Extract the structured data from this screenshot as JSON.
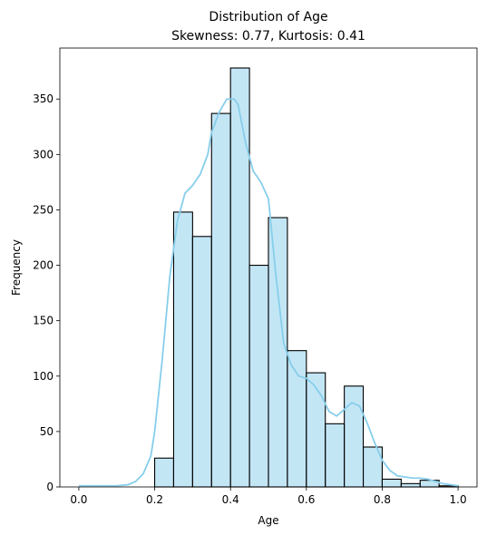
{
  "chart_data": {
    "type": "bar",
    "title": "Distribution of Age",
    "subtitle": "Skewness: 0.77, Kurtosis: 0.41",
    "xlabel": "Age",
    "ylabel": "Frequency",
    "xlim": [
      -0.05,
      1.05
    ],
    "ylim": [
      0,
      396
    ],
    "x_ticks": [
      0.0,
      0.2,
      0.4,
      0.6,
      0.8,
      1.0
    ],
    "x_tick_labels": [
      "0.0",
      "0.2",
      "0.4",
      "0.6",
      "0.8",
      "1.0"
    ],
    "y_ticks": [
      0,
      50,
      100,
      150,
      200,
      250,
      300,
      350
    ],
    "y_tick_labels": [
      "0",
      "50",
      "100",
      "150",
      "200",
      "250",
      "300",
      "350"
    ],
    "grid": false,
    "legend": "none",
    "colors": {
      "bar_fill": "#87ceeb",
      "bar_fill_opacity": 0.5,
      "bar_edge": "#000000",
      "kde_line": "#87ceeb"
    },
    "bins": [
      {
        "x0": 0.0,
        "x1": 0.05,
        "count": 0
      },
      {
        "x0": 0.05,
        "x1": 0.1,
        "count": 0
      },
      {
        "x0": 0.1,
        "x1": 0.15,
        "count": 0
      },
      {
        "x0": 0.15,
        "x1": 0.2,
        "count": 0
      },
      {
        "x0": 0.2,
        "x1": 0.25,
        "count": 26
      },
      {
        "x0": 0.25,
        "x1": 0.3,
        "count": 248
      },
      {
        "x0": 0.3,
        "x1": 0.35,
        "count": 226
      },
      {
        "x0": 0.35,
        "x1": 0.4,
        "count": 337
      },
      {
        "x0": 0.4,
        "x1": 0.45,
        "count": 378
      },
      {
        "x0": 0.45,
        "x1": 0.5,
        "count": 200
      },
      {
        "x0": 0.5,
        "x1": 0.55,
        "count": 243
      },
      {
        "x0": 0.55,
        "x1": 0.6,
        "count": 123
      },
      {
        "x0": 0.6,
        "x1": 0.65,
        "count": 103
      },
      {
        "x0": 0.65,
        "x1": 0.7,
        "count": 57
      },
      {
        "x0": 0.7,
        "x1": 0.75,
        "count": 91
      },
      {
        "x0": 0.75,
        "x1": 0.8,
        "count": 36
      },
      {
        "x0": 0.8,
        "x1": 0.85,
        "count": 7
      },
      {
        "x0": 0.85,
        "x1": 0.9,
        "count": 3
      },
      {
        "x0": 0.9,
        "x1": 0.95,
        "count": 6
      },
      {
        "x0": 0.95,
        "x1": 1.0,
        "count": 1
      }
    ],
    "kde": {
      "x": [
        0.0,
        0.05,
        0.1,
        0.13,
        0.15,
        0.17,
        0.19,
        0.2,
        0.22,
        0.24,
        0.26,
        0.28,
        0.3,
        0.32,
        0.34,
        0.35,
        0.37,
        0.39,
        0.41,
        0.42,
        0.44,
        0.46,
        0.48,
        0.5,
        0.52,
        0.54,
        0.56,
        0.58,
        0.6,
        0.62,
        0.64,
        0.66,
        0.68,
        0.7,
        0.72,
        0.74,
        0.76,
        0.78,
        0.8,
        0.82,
        0.84,
        0.86,
        0.88,
        0.9,
        0.92,
        0.94,
        0.96,
        0.98,
        1.0
      ],
      "y": [
        1,
        1,
        1,
        2,
        5,
        12,
        28,
        50,
        115,
        190,
        240,
        265,
        272,
        282,
        300,
        320,
        338,
        350,
        350,
        345,
        310,
        285,
        275,
        260,
        190,
        130,
        110,
        100,
        98,
        92,
        82,
        68,
        64,
        70,
        76,
        73,
        58,
        40,
        24,
        15,
        10,
        9,
        8,
        8,
        7,
        5,
        3,
        2,
        1
      ]
    }
  }
}
